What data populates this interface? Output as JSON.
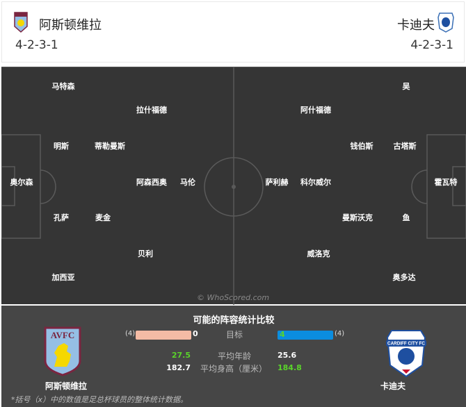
{
  "header": {
    "home": {
      "name": "阿斯顿维拉",
      "formation": "4-2-3-1",
      "badge": "AVFC"
    },
    "away": {
      "name": "卡迪夫",
      "formation": "4-2-3-1",
      "badge": "CARDIFF CITY FC"
    }
  },
  "players": {
    "home": [
      "马特森",
      "拉什福德",
      "明斯",
      "蒂勒曼斯",
      "奥尔森",
      "阿森西奥",
      "马伦",
      "孔萨",
      "麦金",
      "贝利",
      "加西亚"
    ],
    "away": [
      "吴",
      "阿什福德",
      "钱伯斯",
      "古塔斯",
      "萨利赫",
      "科尔威尔",
      "霍瓦特",
      "曼斯沃克",
      "鱼",
      "威洛克",
      "奥多达"
    ]
  },
  "watermark": "© WhoScored.com",
  "comparison": {
    "title": "可能的阵容统计比较",
    "goals": {
      "label": "目标",
      "home": "0",
      "home_total": "(4)",
      "away": "4",
      "away_total": "(4)"
    },
    "age": {
      "label": "平均年龄",
      "home": "27.5",
      "away": "25.6"
    },
    "height": {
      "label": "平均身高（厘米）",
      "home": "182.7",
      "away": "184.8"
    },
    "home_name": "阿斯顿维拉",
    "away_name": "卡迪夫",
    "footnote": "*括号（x）中的数值是足总杯球员的整体统计数据。"
  },
  "colors": {
    "home_bar": "#f4bba5",
    "away_bar": "#0b8ddf",
    "better": "#5ad42a",
    "pitch": "#353535"
  }
}
